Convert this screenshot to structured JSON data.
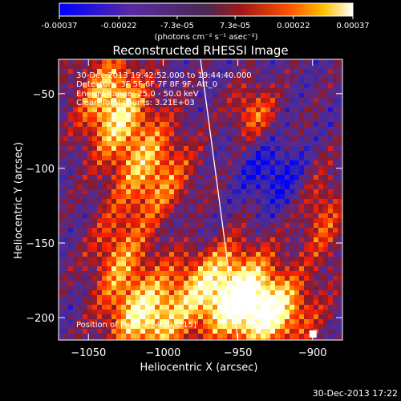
{
  "colorbar": {
    "ticks": [
      "-0.00037",
      "-0.00022",
      "-7.3e-05",
      "7.3e-05",
      "0.00022",
      "0.00037"
    ],
    "units_label": "(photons cm⁻² s⁻¹ asec⁻²)",
    "range": [
      -0.00037,
      0.00037
    ]
  },
  "chart_data": {
    "type": "heatmap",
    "title": "Reconstructed RHESSI Image",
    "xlabel": "Heliocentric X (arcsec)",
    "ylabel": "Heliocentric Y (arcsec)",
    "xlim": [
      -1070,
      -880
    ],
    "ylim": [
      -215,
      -27
    ],
    "xticks": [
      -1050,
      -1000,
      -950,
      -900
    ],
    "yticks": [
      -50,
      -100,
      -150,
      -200
    ],
    "annotations": [
      "30-Dec-2013 19:42:52.000 to 19:44:40.000",
      "Detectors: 3F 5F 6F 7F 8F 9F, Att_0",
      "Energy Range: 25.0 - 50.0 keV",
      "Clean   Total counts: 3.21E+03"
    ],
    "peak_label": "Position of Peak = [-900,-215]",
    "peak": [
      -900,
      -215
    ],
    "limb_line": {
      "x": [
        -975,
        -950
      ],
      "y": [
        -27,
        -215
      ]
    },
    "footer": "30-Dec-2013 17:22",
    "colormap": [
      "#0000ff",
      "#3a2aa8",
      "#5a2a8a",
      "#8a1a2a",
      "#ff2000",
      "#ff9000",
      "#ffff80",
      "#ffffff"
    ]
  }
}
